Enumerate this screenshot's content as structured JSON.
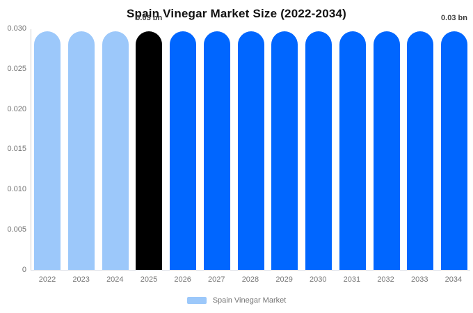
{
  "title": "Spain Vinegar Market Size (2022-2034)",
  "colors": {
    "light_blue": "#9cc8fa",
    "blue": "#0066ff",
    "black": "#000000",
    "axis_text": "#757575",
    "annotation_text": "#3d3d3d",
    "axis_line": "#cccccc"
  },
  "chart_data": {
    "type": "bar",
    "title": "Spain Vinegar Market Size (2022-2034)",
    "categories": [
      "2022",
      "2023",
      "2024",
      "2025",
      "2026",
      "2027",
      "2028",
      "2029",
      "2030",
      "2031",
      "2032",
      "2033",
      "2034"
    ],
    "values": [
      0.0297,
      0.0297,
      0.0297,
      0.0297,
      0.0297,
      0.0297,
      0.0297,
      0.0297,
      0.0297,
      0.0297,
      0.0297,
      0.0297,
      0.0297
    ],
    "value_unit": "bn",
    "bar_colors": [
      "#9cc8fa",
      "#9cc8fa",
      "#9cc8fa",
      "#000000",
      "#0066ff",
      "#0066ff",
      "#0066ff",
      "#0066ff",
      "#0066ff",
      "#0066ff",
      "#0066ff",
      "#0066ff",
      "#0066ff"
    ],
    "y_ticks": [
      "0.030",
      "0.025",
      "0.020",
      "0.015",
      "0.010",
      "0.005",
      "0"
    ],
    "ylim": [
      0,
      0.03
    ],
    "grid": false,
    "legend_position": "bottom",
    "annotations": [
      {
        "category": "2025",
        "label": "0.03 bn"
      },
      {
        "category": "2034",
        "label": "0.03 bn"
      }
    ],
    "legend": [
      {
        "label": "Spain Vinegar Market",
        "color": "#9cc8fa"
      }
    ]
  }
}
